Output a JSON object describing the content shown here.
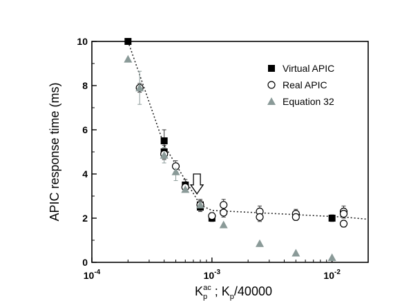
{
  "chart_data": {
    "type": "scatter",
    "x_scale": "log",
    "xlim": [
      0.0001,
      0.02
    ],
    "ylim": [
      0,
      10
    ],
    "ylabel": "APIC response time (ms)",
    "xlabel_parts": [
      "K",
      "p",
      "ac",
      " ; K",
      "p",
      "/40000"
    ],
    "x_ticks": [
      {
        "value": 0.0001,
        "base": "10",
        "exp": "-4"
      },
      {
        "value": 0.001,
        "base": "10",
        "exp": "-3"
      },
      {
        "value": 0.01,
        "base": "10",
        "exp": "-2"
      }
    ],
    "y_ticks": [
      {
        "value": 0,
        "label": "0"
      },
      {
        "value": 2,
        "label": "2"
      },
      {
        "value": 4,
        "label": "4"
      },
      {
        "value": 6,
        "label": "6"
      },
      {
        "value": 8,
        "label": "8"
      },
      {
        "value": 10,
        "label": "10"
      }
    ],
    "legend_position": "top-right",
    "series": [
      {
        "name": "Virtual APIC",
        "marker": "filled-square",
        "color": "#000000",
        "points": [
          {
            "x": 0.0002,
            "y": 10.0,
            "err": 0.1
          },
          {
            "x": 0.0004,
            "y": 5.5,
            "err": 0.5
          },
          {
            "x": 0.0004,
            "y": 5.0,
            "err": 0.3
          },
          {
            "x": 0.0006,
            "y": 3.5,
            "err": 0.25
          },
          {
            "x": 0.0008,
            "y": 2.6,
            "err": 0.25
          },
          {
            "x": 0.0008,
            "y": 2.5,
            "err": 0.2
          },
          {
            "x": 0.001,
            "y": 2.0,
            "err": 0.15
          },
          {
            "x": 0.01,
            "y": 2.0,
            "err": 0.15
          }
        ]
      },
      {
        "name": "Real APIC",
        "marker": "open-circle",
        "color": "#000000",
        "points": [
          {
            "x": 0.00025,
            "y": 7.9,
            "err": 0.2
          },
          {
            "x": 0.0004,
            "y": 4.9,
            "err": 0.25
          },
          {
            "x": 0.0005,
            "y": 4.35,
            "err": 0.25
          },
          {
            "x": 0.0006,
            "y": 3.4,
            "err": 0.2
          },
          {
            "x": 0.0008,
            "y": 2.6,
            "err": 0.2
          },
          {
            "x": 0.001,
            "y": 2.1,
            "err": 0.15
          },
          {
            "x": 0.00125,
            "y": 2.6,
            "err": 0.25
          },
          {
            "x": 0.00125,
            "y": 2.25,
            "err": 0.2
          },
          {
            "x": 0.0025,
            "y": 2.3,
            "err": 0.25
          },
          {
            "x": 0.0025,
            "y": 2.05,
            "err": 0.2
          },
          {
            "x": 0.005,
            "y": 2.2,
            "err": 0.2
          },
          {
            "x": 0.005,
            "y": 2.05,
            "err": 0.15
          },
          {
            "x": 0.0125,
            "y": 2.3,
            "err": 0.25
          },
          {
            "x": 0.0125,
            "y": 2.2,
            "err": 0.2
          },
          {
            "x": 0.0125,
            "y": 1.75,
            "err": 0.15
          }
        ]
      },
      {
        "name": "Equation 32",
        "marker": "gray-triangle",
        "color": "#8a9a98",
        "points": [
          {
            "x": 0.0002,
            "y": 9.2,
            "err": 0
          },
          {
            "x": 0.00025,
            "y": 7.9,
            "err": 0.75
          },
          {
            "x": 0.0004,
            "y": 4.85,
            "err": 0.35
          },
          {
            "x": 0.0005,
            "y": 4.1,
            "err": 0.4
          },
          {
            "x": 0.0006,
            "y": 3.3,
            "err": 0
          },
          {
            "x": 0.0008,
            "y": 2.6,
            "err": 0
          },
          {
            "x": 0.00125,
            "y": 1.7,
            "err": 0
          },
          {
            "x": 0.0025,
            "y": 0.85,
            "err": 0
          },
          {
            "x": 0.005,
            "y": 0.42,
            "err": 0
          },
          {
            "x": 0.01,
            "y": 0.22,
            "err": 0
          }
        ]
      }
    ],
    "trend_line": [
      {
        "x": 0.0002,
        "y": 10.0
      },
      {
        "x": 0.0004,
        "y": 5.3
      },
      {
        "x": 0.0008,
        "y": 2.6
      },
      {
        "x": 0.001,
        "y": 2.35
      },
      {
        "x": 0.0125,
        "y": 2.05
      },
      {
        "x": 0.02,
        "y": 1.95
      }
    ],
    "arrow_annotation": {
      "x": 0.00075,
      "y_top": 4.0,
      "y_bottom": 3.1
    }
  }
}
